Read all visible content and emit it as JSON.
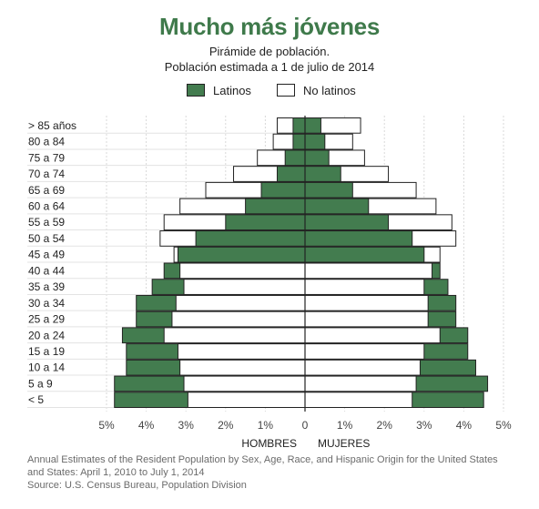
{
  "chart_data": {
    "type": "bar",
    "orientation": "horizontal-pyramid",
    "title": "Mucho más jóvenes",
    "subtitle_lines": [
      "Pirámide de población.",
      "Población estimada a 1 de julio de 2014"
    ],
    "categories": [
      "> 85 años",
      "80 a 84",
      "75 a 79",
      "70 a 74",
      "65 a 69",
      "60 a 64",
      "55 a 59",
      "50 a 54",
      "45 a 49",
      "40 a 44",
      "35 a 39",
      "30 a 34",
      "25 a 29",
      "20 a 24",
      "15 a 19",
      "10 a 14",
      "5 a 9",
      "< 5"
    ],
    "series": [
      {
        "name": "Latinos",
        "color": "#437c4f",
        "hombres": [
          0.3,
          0.3,
          0.5,
          0.7,
          1.1,
          1.5,
          2.0,
          2.75,
          3.2,
          3.55,
          3.85,
          4.25,
          4.25,
          4.6,
          4.5,
          4.5,
          4.8,
          4.8
        ],
        "mujeres": [
          0.4,
          0.5,
          0.6,
          0.9,
          1.2,
          1.6,
          2.1,
          2.7,
          3.0,
          3.4,
          3.6,
          3.8,
          3.8,
          4.1,
          4.1,
          4.3,
          4.6,
          4.5
        ]
      },
      {
        "name": "No latinos",
        "color": "#ffffff",
        "hombres": [
          0.7,
          0.8,
          1.2,
          1.8,
          2.5,
          3.15,
          3.55,
          3.65,
          3.3,
          3.15,
          3.05,
          3.25,
          3.35,
          3.55,
          3.2,
          3.15,
          3.05,
          2.95
        ],
        "mujeres": [
          1.4,
          1.2,
          1.5,
          2.1,
          2.8,
          3.3,
          3.7,
          3.8,
          3.4,
          3.2,
          3.0,
          3.1,
          3.1,
          3.4,
          3.0,
          2.9,
          2.8,
          2.7
        ]
      }
    ],
    "x_ticks": [
      "5%",
      "4%",
      "3%",
      "2%",
      "1%",
      "0",
      "1%",
      "2%",
      "3%",
      "4%",
      "5%"
    ],
    "xlim": [
      -5,
      5
    ],
    "xlabel_left": "HOMBRES",
    "xlabel_right": "MUJERES",
    "legend_position": "top-center",
    "grid": true
  },
  "legend": {
    "latinos": "Latinos",
    "no_latinos": "No latinos"
  },
  "source_line1": "Annual Estimates of the Resident Population by Sex, Age, Race, and Hispanic Origin for the United States",
  "source_line2": "and States: April 1, 2010 to July 1, 2014",
  "source_line3": "Source: U.S. Census Bureau, Population Division"
}
